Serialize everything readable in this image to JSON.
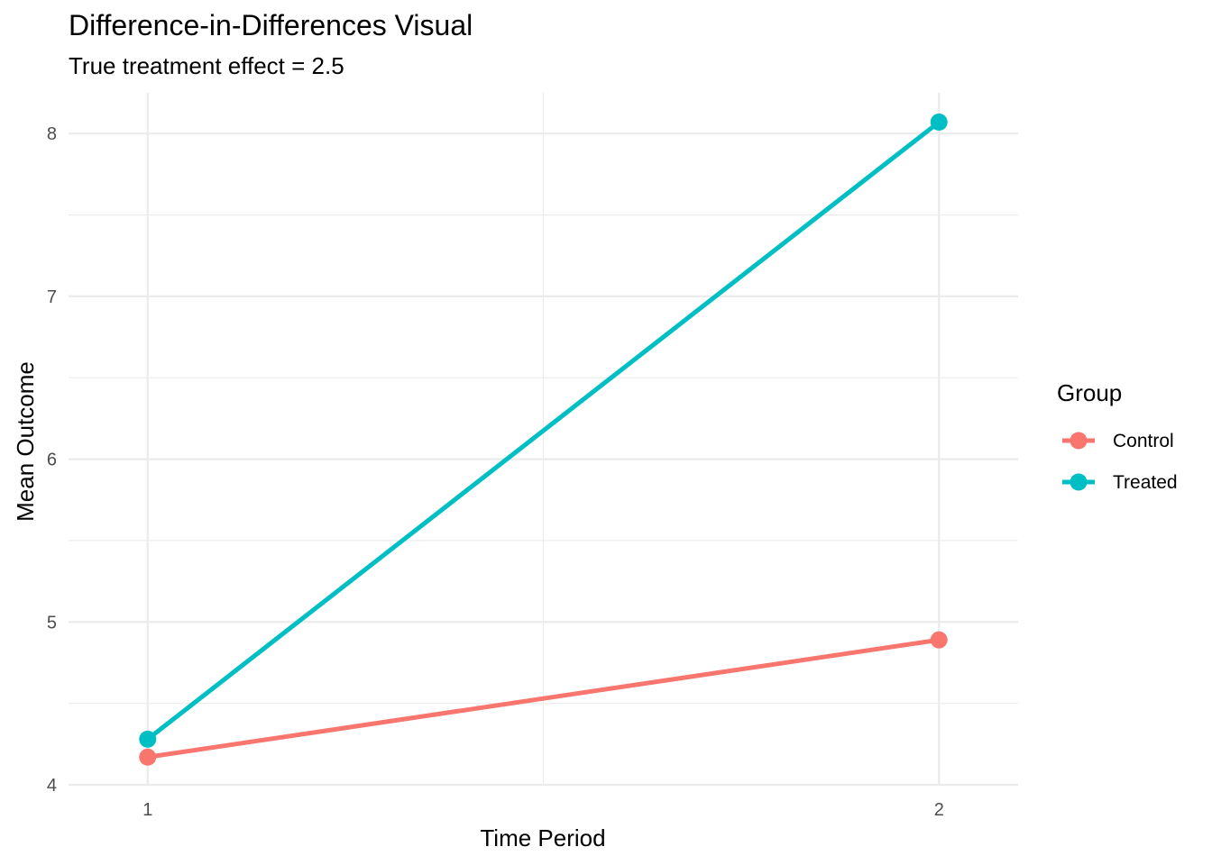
{
  "chart_data": {
    "type": "line",
    "title": "Difference-in-Differences Visual",
    "subtitle": "True treatment effect = 2.5",
    "xlabel": "Time Period",
    "ylabel": "Mean Outcome",
    "x": [
      1,
      2
    ],
    "x_ticks": [
      "1",
      "2"
    ],
    "y_ticks": [
      "4",
      "5",
      "6",
      "7",
      "8"
    ],
    "xlim": [
      0.9,
      2.1
    ],
    "ylim": [
      4.0,
      8.25
    ],
    "grid": true,
    "legend": {
      "title": "Group",
      "position": "right"
    },
    "series": [
      {
        "name": "Control",
        "color": "#F8766D",
        "values": [
          4.17,
          4.89
        ]
      },
      {
        "name": "Treated",
        "color": "#00BFC4",
        "values": [
          4.28,
          8.07
        ]
      }
    ]
  }
}
